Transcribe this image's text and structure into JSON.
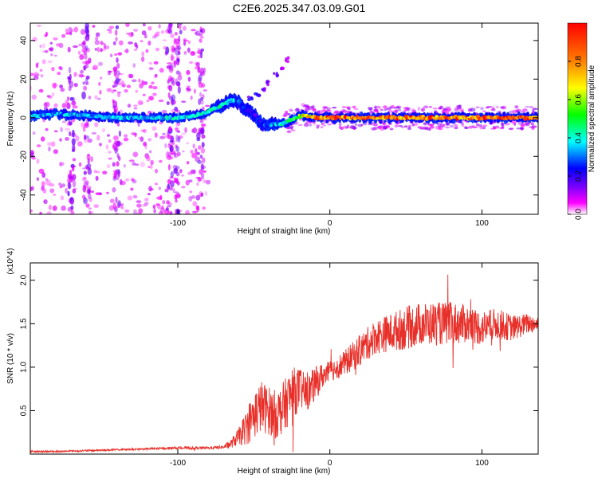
{
  "figure_title": "C2E6.2025.347.03.09.G01",
  "chart_data": [
    {
      "type": "heatmap",
      "xlabel": "Height of straight line (km)",
      "ylabel": "Frequency (Hz)",
      "xlim": [
        -197,
        137
      ],
      "ylim": [
        -50,
        49
      ],
      "xticks": [
        -100,
        0,
        100
      ],
      "yticks": [
        -40,
        -20,
        0,
        20,
        40
      ],
      "grid": false,
      "colorbar": {
        "label": "Normalized spectral amplitude",
        "range": [
          0,
          1
        ],
        "ticks": [
          0.0,
          0.2,
          0.4,
          0.6,
          0.8
        ],
        "colormap": [
          "#ffffff",
          "#ff00ff",
          "#8000ff",
          "#0000ff",
          "#00ffff",
          "#00ff00",
          "#ffff00",
          "#ff8000",
          "#ff0000"
        ]
      },
      "ridge": {
        "x": [
          -197,
          -180,
          -160,
          -140,
          -120,
          -100,
          -90,
          -80,
          -70,
          -65,
          -60,
          -55,
          -50,
          -45,
          -40,
          -35,
          -30,
          -25,
          -20,
          -15,
          -10,
          0,
          20,
          40,
          60,
          80,
          100,
          120,
          137
        ],
        "y": [
          1,
          2,
          1,
          0,
          0,
          0,
          1,
          3,
          7,
          9,
          8,
          4,
          2,
          -3,
          -4,
          -3,
          -3,
          -1,
          1,
          1,
          0,
          0,
          0,
          0,
          0,
          0,
          0,
          0,
          0
        ],
        "amplitude": [
          0.35,
          0.35,
          0.35,
          0.35,
          0.35,
          0.4,
          0.4,
          0.45,
          0.45,
          0.4,
          0.3,
          0.25,
          0.2,
          0.25,
          0.3,
          0.35,
          0.4,
          0.5,
          0.6,
          0.7,
          0.8,
          0.85,
          0.9,
          0.85,
          0.85,
          0.85,
          0.85,
          0.9,
          0.9
        ]
      },
      "branch": {
        "x": [
          -52,
          -48,
          -44,
          -40,
          -36,
          -32,
          -28
        ],
        "y": [
          10,
          12,
          15,
          18,
          22,
          26,
          30
        ],
        "amplitude": [
          0.2,
          0.2,
          0.15,
          0.15,
          0.15,
          0.12,
          0.1
        ]
      },
      "noise_columns_x": [
        -170,
        -160,
        -140,
        -105,
        -100,
        -85
      ]
    },
    {
      "type": "line",
      "xlabel": "Height of straight line (km)",
      "ylabel": "SNR (10 * v/v)",
      "y_multiplier": "(x10^4)",
      "xlim": [
        -197,
        137
      ],
      "ylim": [
        0,
        2.2
      ],
      "xticks": [
        -100,
        0,
        100
      ],
      "yticks": [
        0.5,
        1.0,
        1.5,
        2.0
      ],
      "ytick_labels": [
        "0.5",
        "1.0",
        "1.5",
        "2.0"
      ],
      "grid": false,
      "series": [
        {
          "color": "#e8302a",
          "x": [
            -197,
            -180,
            -160,
            -140,
            -120,
            -100,
            -90,
            -80,
            -70,
            -65,
            -60,
            -55,
            -50,
            -45,
            -40,
            -35,
            -30,
            -25,
            -20,
            -15,
            -10,
            -5,
            0,
            10,
            20,
            30,
            40,
            50,
            60,
            70,
            80,
            90,
            100,
            110,
            120,
            130,
            137
          ],
          "y": [
            0.03,
            0.03,
            0.04,
            0.05,
            0.06,
            0.07,
            0.07,
            0.07,
            0.08,
            0.12,
            0.2,
            0.3,
            0.45,
            0.55,
            0.5,
            0.45,
            0.55,
            0.7,
            0.75,
            0.7,
            0.8,
            0.9,
            0.95,
            1.05,
            1.2,
            1.35,
            1.4,
            1.45,
            1.5,
            1.5,
            1.5,
            1.5,
            1.45,
            1.5,
            1.45,
            1.5,
            1.5
          ],
          "jitter": [
            0.01,
            0.01,
            0.01,
            0.01,
            0.01,
            0.015,
            0.015,
            0.015,
            0.02,
            0.05,
            0.1,
            0.2,
            0.28,
            0.3,
            0.28,
            0.28,
            0.3,
            0.3,
            0.25,
            0.2,
            0.2,
            0.15,
            0.12,
            0.15,
            0.18,
            0.2,
            0.22,
            0.25,
            0.25,
            0.25,
            0.25,
            0.22,
            0.2,
            0.18,
            0.15,
            0.12,
            0.1
          ]
        }
      ]
    }
  ]
}
